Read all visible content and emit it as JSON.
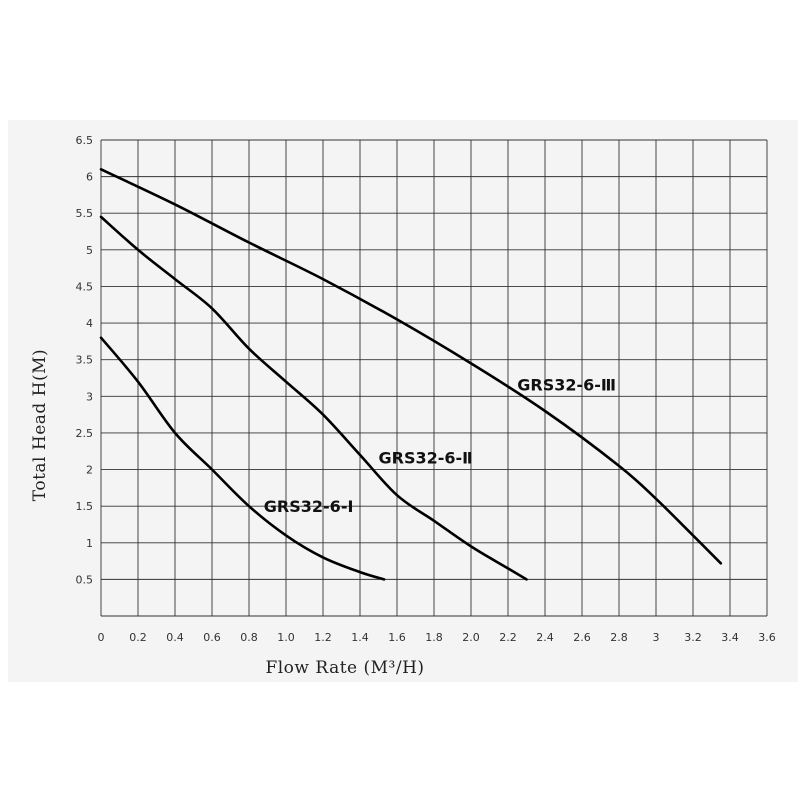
{
  "chart_data": {
    "type": "line",
    "xlabel": "Flow Rate (M³/H)",
    "ylabel": "Total Head H(M)",
    "xlim": [
      0,
      3.6
    ],
    "ylim": [
      0,
      6.5
    ],
    "x_ticks": [
      "0",
      "0.2",
      "0.4",
      "0.6",
      "0.8",
      "1.0",
      "1.2",
      "1.4",
      "1.6",
      "1.8",
      "2.0",
      "2.2",
      "2.4",
      "2.6",
      "2.8",
      "3",
      "3.2",
      "3.4",
      "3.6"
    ],
    "y_ticks": [
      "0.5",
      "1",
      "1.5",
      "2",
      "2.5",
      "3",
      "3.5",
      "4",
      "4.5",
      "5",
      "5.5",
      "6",
      "6.5"
    ],
    "grid": true,
    "series": [
      {
        "name": "GRS32-6-Ⅰ",
        "points": [
          [
            0,
            3.8
          ],
          [
            0.2,
            3.2
          ],
          [
            0.4,
            2.5
          ],
          [
            0.6,
            2.0
          ],
          [
            0.8,
            1.5
          ],
          [
            1.0,
            1.1
          ],
          [
            1.2,
            0.8
          ],
          [
            1.4,
            0.6
          ],
          [
            1.53,
            0.5
          ]
        ]
      },
      {
        "name": "GRS32-6-Ⅱ",
        "points": [
          [
            0,
            5.45
          ],
          [
            0.2,
            5.0
          ],
          [
            0.4,
            4.6
          ],
          [
            0.6,
            4.2
          ],
          [
            0.8,
            3.65
          ],
          [
            1.0,
            3.2
          ],
          [
            1.2,
            2.75
          ],
          [
            1.4,
            2.2
          ],
          [
            1.6,
            1.65
          ],
          [
            1.8,
            1.3
          ],
          [
            2.0,
            0.95
          ],
          [
            2.2,
            0.65
          ],
          [
            2.3,
            0.5
          ]
        ]
      },
      {
        "name": "GRS32-6-Ⅲ",
        "points": [
          [
            0,
            6.1
          ],
          [
            0.4,
            5.62
          ],
          [
            0.8,
            5.1
          ],
          [
            1.2,
            4.6
          ],
          [
            1.6,
            4.05
          ],
          [
            2.0,
            3.45
          ],
          [
            2.4,
            2.8
          ],
          [
            2.8,
            2.05
          ],
          [
            3.0,
            1.6
          ],
          [
            3.2,
            1.1
          ],
          [
            3.35,
            0.72
          ]
        ]
      }
    ]
  }
}
